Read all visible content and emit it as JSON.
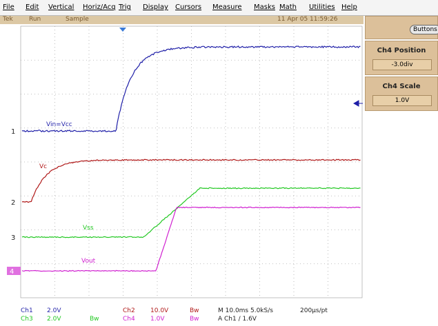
{
  "menu": [
    "File",
    "Edit",
    "Vertical",
    "Horiz/Acq",
    "Trig",
    "Display",
    "Cursors",
    "Measure",
    "Masks",
    "Math",
    "Utilities",
    "Help"
  ],
  "status": {
    "brand": "Tek",
    "state": "Run",
    "mode": "Sample",
    "timestamp": "11 Apr 05 11:59:26"
  },
  "side_panel": {
    "button": "Buttons",
    "controls": [
      {
        "label": "Ch4 Position",
        "value": "-3.0div"
      },
      {
        "label": "Ch4 Scale",
        "value": "1.0V"
      }
    ]
  },
  "channel_markers": [
    "1",
    "2",
    "3",
    "4"
  ],
  "trace_labels": [
    "Vin=Vcc",
    "Vc",
    "Vss",
    "Vout"
  ],
  "readout": {
    "row1": [
      "Ch1",
      "2.0V",
      "Ch2",
      "10.0V",
      "Bw",
      "M 10.0ms 5.0kS/s",
      "200µs/pt"
    ],
    "row2": [
      "Ch3",
      "2.0V",
      "Bw",
      "Ch4",
      "1.0V",
      "Bw",
      "A Ch1 ∕ 1.6V"
    ]
  }
}
